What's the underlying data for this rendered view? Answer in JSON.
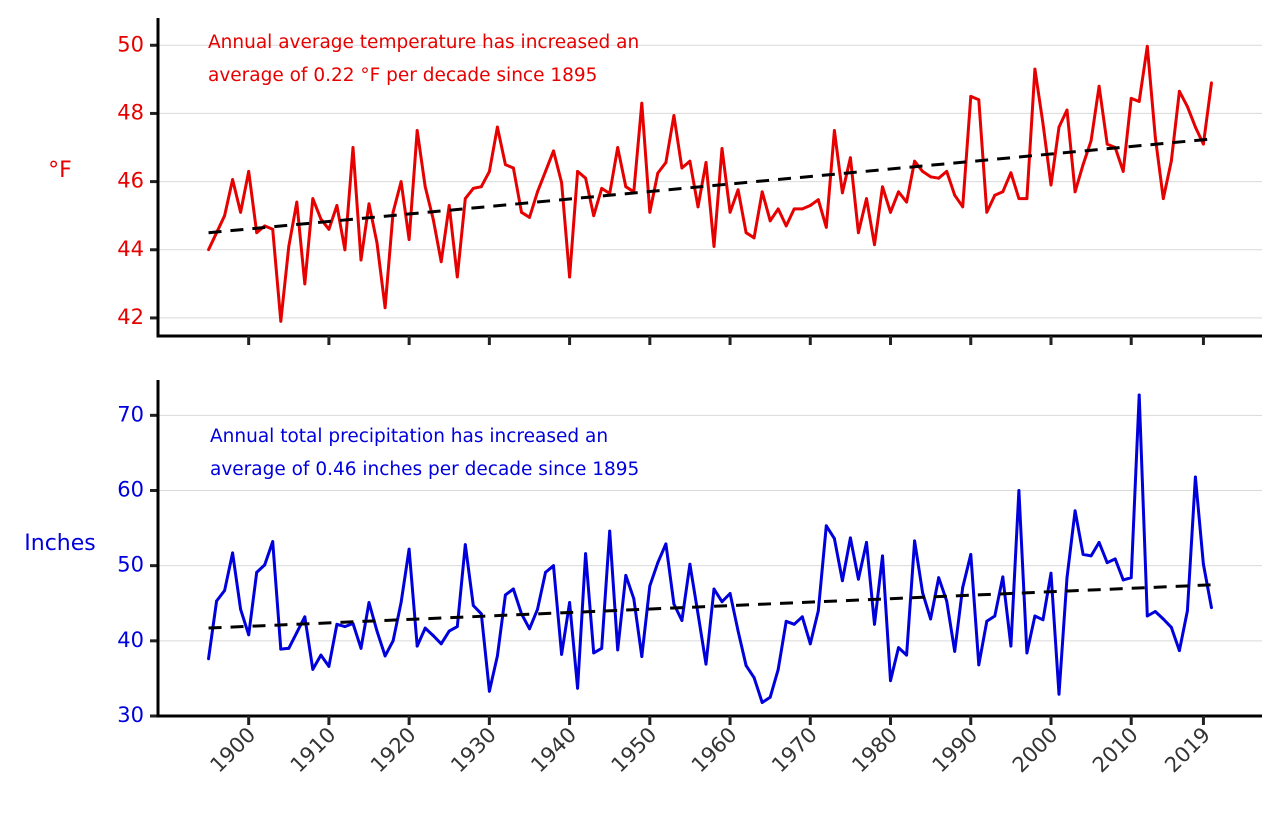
{
  "chart_data": [
    {
      "type": "line",
      "ylabel": "°F",
      "annotation": [
        "Annual average temperature has increased an",
        "average of 0.22 °F per decade since 1895"
      ],
      "color": "#e60000",
      "x_start": 1895,
      "x": "annual, 1895-2020",
      "xlim": [
        1888.7,
        2026.3
      ],
      "ylim": [
        41.47,
        50.8
      ],
      "yticks": [
        42,
        44,
        46,
        48,
        50
      ],
      "grid": "horizontal",
      "values": [
        44.0,
        44.5,
        45.0,
        46.06,
        45.1,
        46.3,
        44.5,
        44.7,
        44.6,
        41.9,
        44.1,
        45.4,
        43.0,
        45.5,
        44.9,
        44.6,
        45.3,
        44.0,
        47.0,
        43.7,
        45.35,
        44.2,
        42.3,
        45.1,
        46.0,
        44.3,
        47.5,
        45.85,
        44.9,
        43.65,
        45.3,
        43.2,
        45.5,
        45.8,
        45.85,
        46.3,
        47.6,
        46.5,
        46.4,
        45.1,
        44.95,
        45.7,
        46.3,
        46.9,
        45.97,
        43.2,
        46.3,
        46.1,
        45.0,
        45.8,
        45.65,
        47.0,
        45.85,
        45.7,
        48.3,
        45.1,
        46.25,
        46.56,
        47.94,
        46.4,
        46.6,
        45.26,
        46.56,
        44.1,
        46.97,
        45.1,
        45.76,
        44.5,
        44.35,
        45.7,
        44.85,
        45.2,
        44.7,
        45.2,
        45.2,
        45.3,
        45.47,
        44.66,
        47.5,
        45.67,
        46.7,
        44.5,
        45.5,
        44.15,
        45.85,
        45.1,
        45.7,
        45.4,
        46.6,
        46.3,
        46.14,
        46.1,
        46.3,
        45.6,
        45.26,
        48.5,
        48.4,
        45.1,
        45.6,
        45.7,
        46.26,
        45.5,
        45.5,
        49.3,
        47.7,
        45.9,
        47.6,
        48.1,
        45.7,
        46.5,
        47.2,
        48.8,
        47.1,
        47.0,
        46.3,
        48.44,
        48.35,
        49.97,
        47.3,
        45.5,
        46.6,
        48.65,
        48.2,
        47.6,
        47.1,
        48.9
      ],
      "trend": {
        "start": 44.5,
        "end": 47.25,
        "style": "dashed",
        "color": "#000000"
      }
    },
    {
      "type": "line",
      "ylabel": "Inches",
      "annotation": [
        "Annual total precipitation has increased an",
        "average of 0.46 inches per decade since 1895"
      ],
      "color": "#0000dd",
      "x_start": 1895,
      "xlim": [
        1888.7,
        2026.3
      ],
      "ylim": [
        30,
        74.7
      ],
      "yticks": [
        30,
        40,
        50,
        60,
        70
      ],
      "grid": "horizontal",
      "values": [
        37.6,
        45.3,
        46.7,
        51.7,
        44.2,
        40.8,
        49.1,
        50.1,
        53.2,
        38.9,
        39.0,
        41.1,
        43.2,
        36.2,
        38.1,
        36.6,
        42.2,
        41.9,
        42.3,
        39.0,
        45.1,
        41.3,
        38.0,
        40.0,
        45.1,
        52.2,
        39.3,
        41.7,
        40.7,
        39.6,
        41.3,
        41.9,
        52.8,
        44.7,
        43.6,
        33.3,
        38.0,
        46.1,
        46.9,
        43.6,
        41.6,
        44.2,
        49.1,
        50.0,
        38.2,
        45.1,
        33.7,
        51.6,
        38.4,
        39.0,
        54.6,
        38.8,
        48.7,
        45.6,
        37.9,
        47.3,
        50.4,
        52.9,
        44.9,
        42.7,
        50.2,
        43.6,
        36.9,
        46.9,
        45.2,
        46.3,
        41.3,
        36.7,
        35.1,
        31.8,
        32.5,
        36.2,
        42.6,
        42.2,
        43.2,
        39.6,
        44.0,
        55.3,
        53.6,
        48.0,
        53.7,
        48.2,
        53.1,
        42.2,
        51.3,
        34.7,
        39.1,
        38.1,
        53.3,
        46.4,
        42.9,
        48.4,
        45.3,
        38.6,
        47.1,
        51.5,
        36.8,
        42.6,
        43.3,
        48.5,
        39.3,
        60.0,
        38.4,
        43.3,
        42.8,
        49.0,
        32.9,
        48.4,
        57.3,
        51.5,
        51.3,
        53.1,
        50.4,
        50.9,
        48.1,
        48.4,
        72.7,
        43.3,
        43.9,
        42.9,
        41.8,
        38.7,
        44.0,
        61.8,
        50.2,
        44.4
      ],
      "trend": {
        "start": 41.7,
        "end": 47.45,
        "style": "dashed",
        "color": "#000000"
      }
    }
  ],
  "x_axis": {
    "tick_years": [
      1900,
      1910,
      1920,
      1930,
      1940,
      1950,
      1960,
      1970,
      1980,
      1990,
      2000,
      2010,
      2019
    ],
    "tick_labels": [
      "1900",
      "1910",
      "1920",
      "1930",
      "1940",
      "1950",
      "1960",
      "1970",
      "1980",
      "1990",
      "2000",
      "2010",
      "2019"
    ],
    "label_color": "#333333"
  }
}
